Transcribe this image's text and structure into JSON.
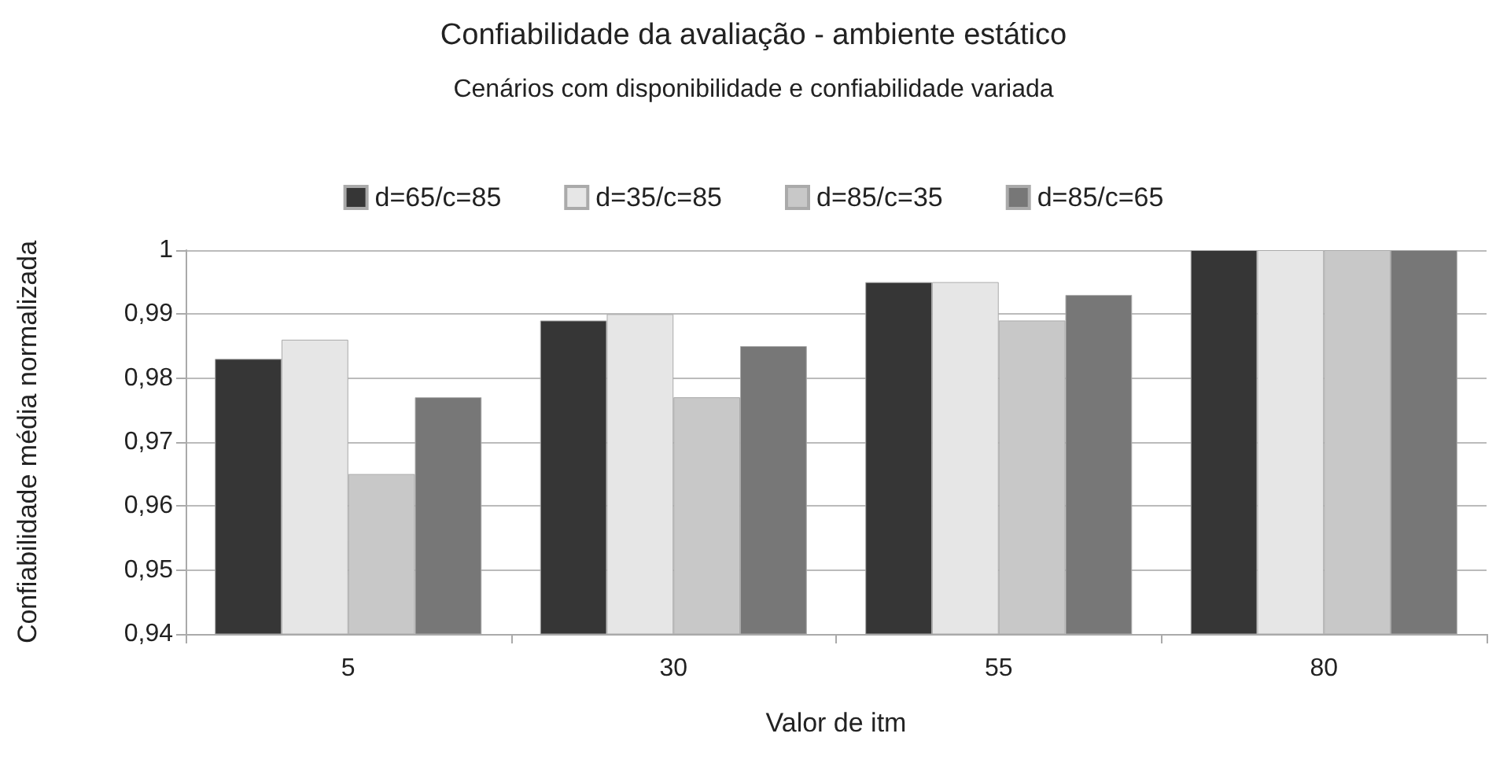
{
  "chart_data": {
    "type": "bar",
    "title": "Confiabilidade da avaliação - ambiente estático",
    "subtitle": "Cenários com disponibilidade e confiabilidade variada",
    "xlabel": "Valor de itm",
    "ylabel": "Confiabilidade média normalizada",
    "categories": [
      "5",
      "30",
      "55",
      "80"
    ],
    "series": [
      {
        "name": "d=65/c=85",
        "color": "#363636",
        "values": [
          0.983,
          0.989,
          0.995,
          1
        ]
      },
      {
        "name": "d=35/c=85",
        "color": "#e6e6e6",
        "values": [
          0.986,
          0.99,
          0.995,
          1
        ]
      },
      {
        "name": "d=85/c=35",
        "color": "#c8c8c8",
        "values": [
          0.965,
          0.977,
          0.989,
          1
        ]
      },
      {
        "name": "d=85/c=65",
        "color": "#777777",
        "values": [
          0.977,
          0.985,
          0.993,
          1
        ]
      }
    ],
    "ylim": [
      0.94,
      1
    ],
    "yticks": [
      {
        "value": 0.94,
        "label": "0,94"
      },
      {
        "value": 0.95,
        "label": "0,95"
      },
      {
        "value": 0.96,
        "label": "0,96"
      },
      {
        "value": 0.97,
        "label": "0,97"
      },
      {
        "value": 0.98,
        "label": "0,98"
      },
      {
        "value": 0.99,
        "label": "0,99"
      },
      {
        "value": 1,
        "label": "1"
      }
    ],
    "grid": "y",
    "legend": "top"
  }
}
